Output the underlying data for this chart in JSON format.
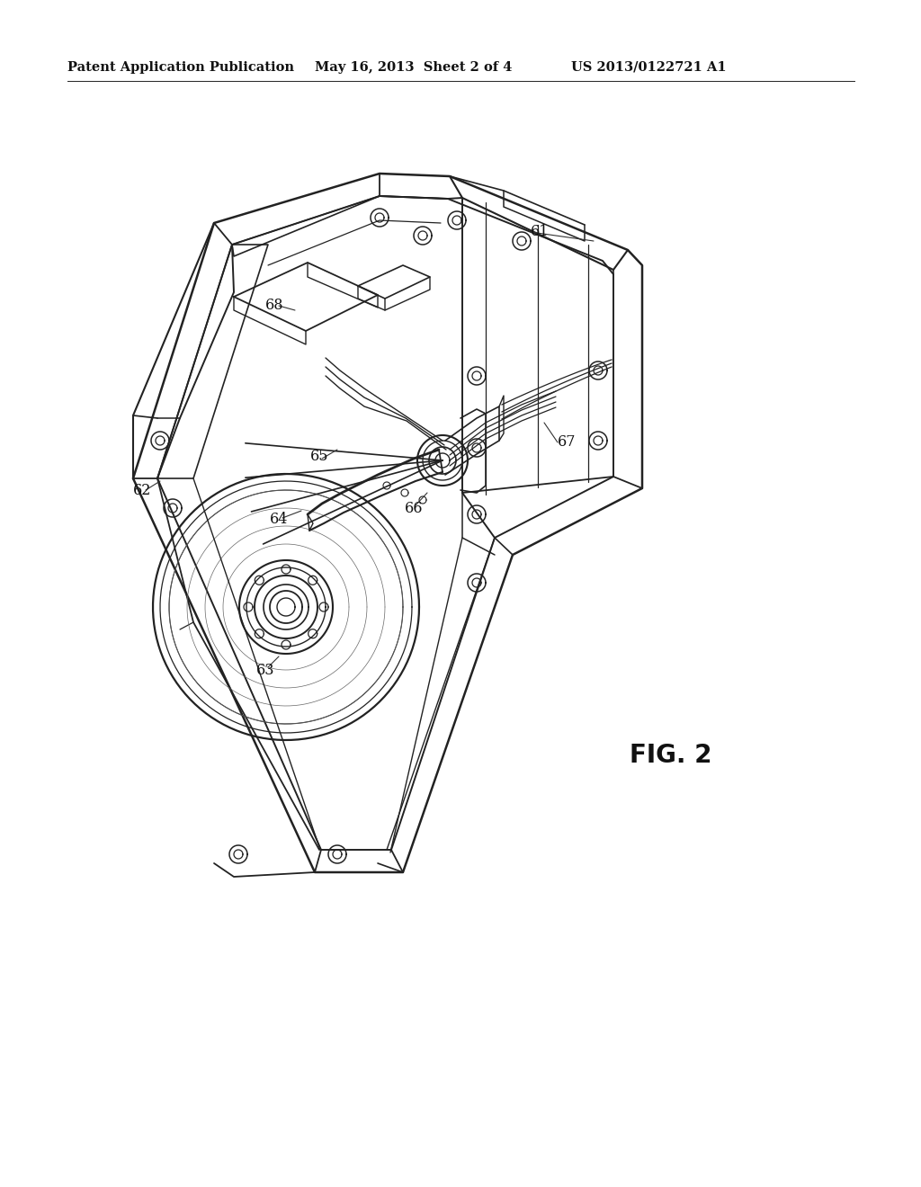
{
  "background_color": "#ffffff",
  "header_left": "Patent Application Publication",
  "header_mid": "May 16, 2013  Sheet 2 of 4",
  "header_right": "US 2013/0122721 A1",
  "fig_label": "FIG. 2",
  "line_color": "#222222",
  "text_color": "#111111",
  "header_fontsize": 10.5,
  "ref_fontsize": 11.5,
  "fig_label_fontsize": 20
}
